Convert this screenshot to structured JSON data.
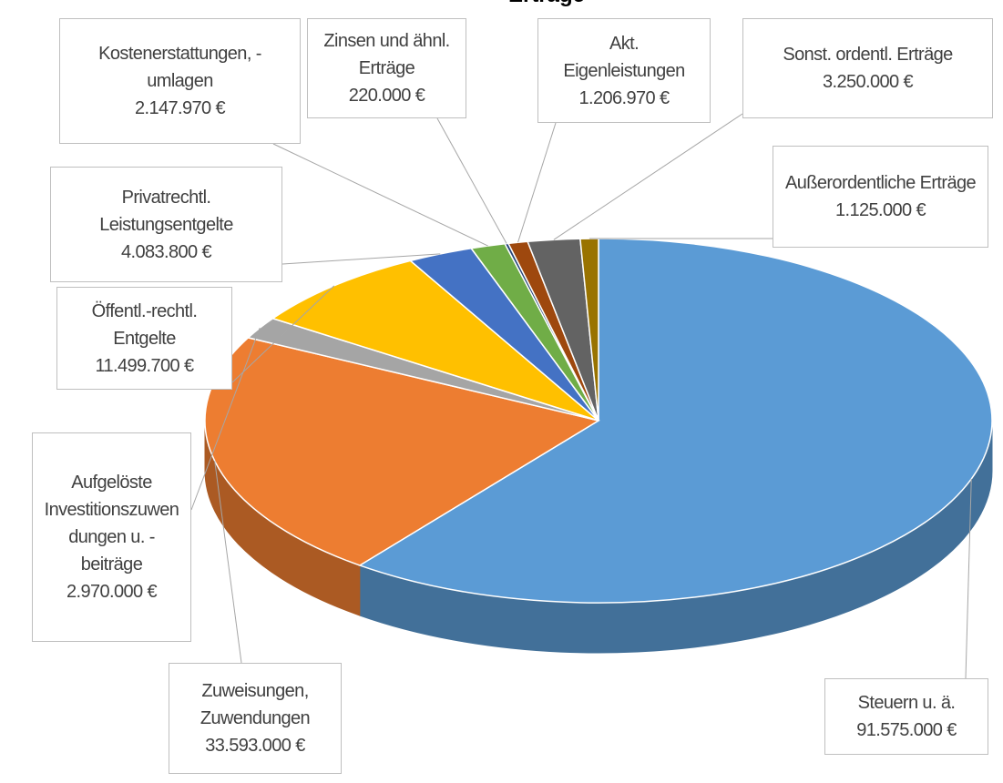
{
  "chart_data": {
    "type": "pie3d",
    "title": "Erträge",
    "categories": [
      "Steuern u. ä.",
      "Zuweisungen, Zuwendungen",
      "Aufgelöste Investitionszuwendungen u. -beiträge",
      "Öffentl.-rechtl. Entgelte",
      "Privatrechtl. Leistungsentgelte",
      "Kostenerstattungen, -umlagen",
      "Zinsen und ähnl. Erträge",
      "Akt. Eigenleistungen",
      "Sonst. ordentl. Erträge",
      "Außerordentliche Erträge"
    ],
    "values": [
      91575000,
      33593000,
      2970000,
      11499700,
      4083800,
      2147970,
      220000,
      1206970,
      3250000,
      1125000
    ],
    "value_labels": [
      "91.575.000 €",
      "33.593.000 €",
      "2.970.000 €",
      "11.499.700 €",
      "4.083.800 €",
      "2.147.970 €",
      "220.000 €",
      "1.206.970 €",
      "3.250.000 €",
      "1.125.000 €"
    ],
    "colors": [
      "#5b9bd5",
      "#ed7d31",
      "#a5a5a5",
      "#ffc000",
      "#4472c4",
      "#70ad47",
      "#264478",
      "#9e480e",
      "#636363",
      "#997300"
    ]
  }
}
